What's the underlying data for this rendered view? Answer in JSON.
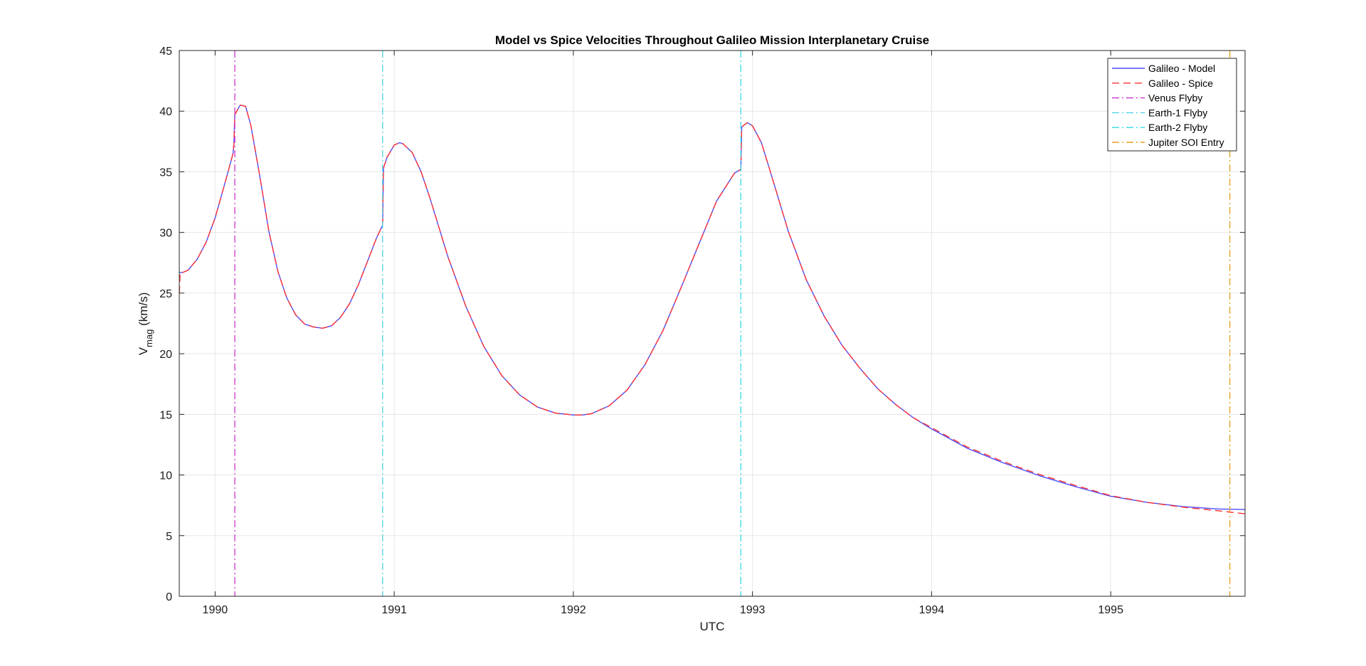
{
  "chart_data": {
    "type": "line",
    "title": "Model vs Spice Velocities Throughout Galileo Mission Interplanetary Cruise",
    "xlabel": "UTC",
    "ylabel": {
      "main": "V",
      "sub": "mag",
      "unit": "(km/s)"
    },
    "xlim": [
      1989.8,
      1995.75
    ],
    "ylim": [
      0,
      45
    ],
    "xticks": [
      1990,
      1991,
      1992,
      1993,
      1994,
      1995
    ],
    "xtick_labels": [
      "1990",
      "1991",
      "1992",
      "1993",
      "1994",
      "1995"
    ],
    "yticks": [
      0,
      5,
      10,
      15,
      20,
      25,
      30,
      35,
      40,
      45
    ],
    "ytick_labels": [
      "0",
      "5",
      "10",
      "15",
      "20",
      "25",
      "30",
      "35",
      "40",
      "45"
    ],
    "grid": true,
    "legend_position": "top-right",
    "series": [
      {
        "name": "Galileo - Model",
        "color": "#4d4dff",
        "style": "solid",
        "x": [
          1989.8,
          1989.82,
          1989.85,
          1989.9,
          1989.95,
          1990.0,
          1990.05,
          1990.1,
          1990.105,
          1990.11,
          1990.14,
          1990.17,
          1990.2,
          1990.25,
          1990.3,
          1990.35,
          1990.4,
          1990.45,
          1990.5,
          1990.55,
          1990.6,
          1990.65,
          1990.7,
          1990.75,
          1990.8,
          1990.85,
          1990.9,
          1990.935,
          1990.94,
          1990.96,
          1991.0,
          1991.03,
          1991.05,
          1991.1,
          1991.15,
          1991.2,
          1991.3,
          1991.4,
          1991.5,
          1991.6,
          1991.7,
          1991.8,
          1991.9,
          1992.0,
          1992.05,
          1992.1,
          1992.2,
          1992.3,
          1992.4,
          1992.5,
          1992.6,
          1992.7,
          1992.8,
          1992.9,
          1992.935,
          1992.94,
          1992.97,
          1993.0,
          1993.05,
          1993.1,
          1993.2,
          1993.3,
          1993.4,
          1993.5,
          1993.6,
          1993.7,
          1993.8,
          1993.9,
          1994.0,
          1994.2,
          1994.4,
          1994.6,
          1994.8,
          1995.0,
          1995.2,
          1995.4,
          1995.6,
          1995.75
        ],
        "y": [
          26.7,
          26.7,
          26.9,
          27.8,
          29.2,
          31.2,
          33.8,
          36.5,
          37.3,
          39.7,
          40.5,
          40.4,
          38.8,
          34.6,
          30.1,
          26.8,
          24.6,
          23.2,
          22.45,
          22.2,
          22.1,
          22.3,
          23.0,
          24.1,
          25.7,
          27.6,
          29.5,
          30.6,
          35.3,
          36.2,
          37.2,
          37.4,
          37.3,
          36.6,
          35.0,
          32.8,
          28.0,
          23.9,
          20.6,
          18.2,
          16.6,
          15.6,
          15.1,
          14.95,
          14.95,
          15.05,
          15.7,
          17.0,
          19.1,
          21.9,
          25.4,
          29.0,
          32.6,
          34.9,
          35.2,
          38.7,
          39.05,
          38.8,
          37.4,
          35.0,
          30.1,
          26.1,
          23.1,
          20.7,
          18.8,
          17.1,
          15.8,
          14.7,
          13.8,
          12.2,
          11.0,
          9.95,
          9.05,
          8.25,
          7.75,
          7.4,
          7.2,
          7.15
        ]
      },
      {
        "name": "Galileo - Spice",
        "color": "#ff3333",
        "style": "dashed",
        "x": [
          1989.8,
          1989.805,
          1989.82,
          1989.85,
          1989.9,
          1989.95,
          1990.0,
          1990.05,
          1990.1,
          1990.105,
          1990.11,
          1990.14,
          1990.17,
          1990.2,
          1990.25,
          1990.3,
          1990.35,
          1990.4,
          1990.45,
          1990.5,
          1990.55,
          1990.6,
          1990.65,
          1990.7,
          1990.75,
          1990.8,
          1990.85,
          1990.9,
          1990.935,
          1990.94,
          1990.96,
          1991.0,
          1991.03,
          1991.05,
          1991.1,
          1991.15,
          1991.2,
          1991.3,
          1991.4,
          1991.5,
          1991.6,
          1991.7,
          1991.8,
          1991.9,
          1992.0,
          1992.05,
          1992.1,
          1992.2,
          1992.3,
          1992.4,
          1992.5,
          1992.6,
          1992.7,
          1992.8,
          1992.9,
          1992.935,
          1992.94,
          1992.97,
          1993.0,
          1993.05,
          1993.1,
          1993.2,
          1993.3,
          1993.4,
          1993.5,
          1993.6,
          1993.7,
          1993.8,
          1993.9,
          1994.0,
          1994.2,
          1994.4,
          1994.6,
          1994.8,
          1995.0,
          1995.2,
          1995.4,
          1995.6,
          1995.75
        ],
        "y": [
          25.0,
          26.7,
          26.7,
          26.9,
          27.8,
          29.2,
          31.2,
          33.8,
          36.5,
          37.3,
          39.7,
          40.5,
          40.4,
          38.8,
          34.6,
          30.1,
          26.8,
          24.6,
          23.2,
          22.45,
          22.2,
          22.1,
          22.3,
          23.0,
          24.1,
          25.7,
          27.6,
          29.5,
          30.6,
          35.3,
          36.2,
          37.2,
          37.4,
          37.3,
          36.6,
          35.0,
          32.8,
          28.0,
          23.9,
          20.6,
          18.2,
          16.6,
          15.6,
          15.1,
          14.95,
          14.95,
          15.05,
          15.7,
          17.0,
          19.1,
          21.9,
          25.4,
          29.0,
          32.6,
          34.9,
          35.2,
          38.7,
          39.05,
          38.8,
          37.4,
          35.0,
          30.1,
          26.1,
          23.1,
          20.7,
          18.8,
          17.1,
          15.8,
          14.7,
          13.9,
          12.3,
          11.1,
          10.05,
          9.15,
          8.3,
          7.75,
          7.35,
          7.05,
          6.8
        ]
      }
    ],
    "vertical_lines": [
      {
        "name": "Venus Flyby",
        "x": 1990.11,
        "color": "#cc33cc",
        "style": "dashdot"
      },
      {
        "name": "Earth-1 Flyby",
        "x": 1990.935,
        "color": "#4dd2e6",
        "style": "dashdot"
      },
      {
        "name": "Earth-2 Flyby",
        "x": 1992.935,
        "color": "#33d9e6",
        "style": "dashdot"
      },
      {
        "name": "Jupiter SOI Entry",
        "x": 1995.665,
        "color": "#e6a020",
        "style": "dashdot"
      }
    ]
  }
}
